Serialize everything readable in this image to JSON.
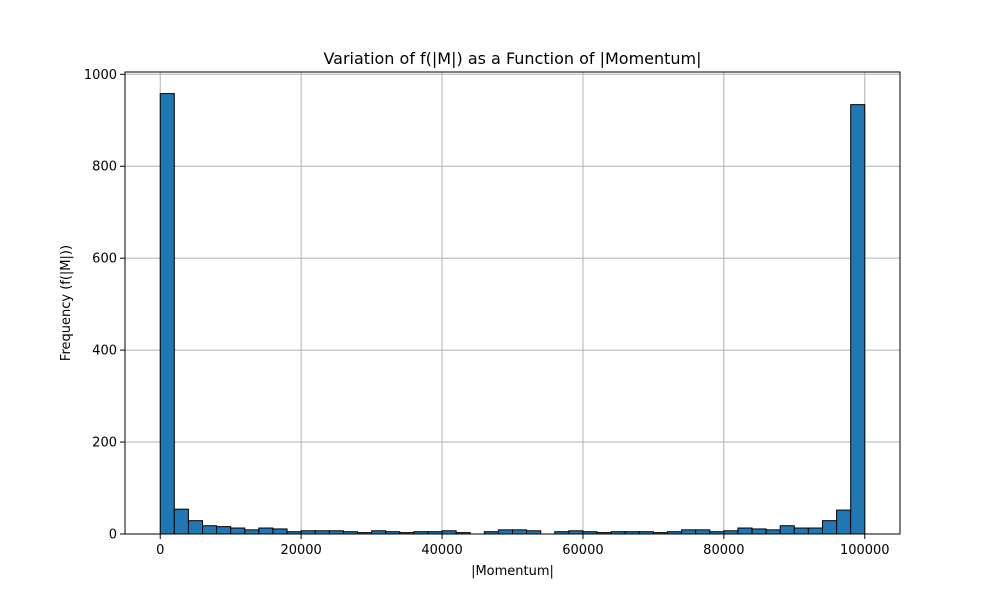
{
  "chart_data": {
    "type": "bar",
    "title": "Variation of f(|M|) as a Function of |Momentum|",
    "xlabel": "|Momentum|",
    "ylabel": "Frequency (f(|M|))",
    "xlim": [
      -5000,
      105000
    ],
    "ylim": [
      0,
      1005
    ],
    "xticks": [
      0,
      20000,
      40000,
      60000,
      80000,
      100000
    ],
    "xtick_labels": [
      "0",
      "20000",
      "40000",
      "60000",
      "80000",
      "100000"
    ],
    "yticks": [
      0,
      200,
      400,
      600,
      800,
      1000
    ],
    "ytick_labels": [
      "0",
      "200",
      "400",
      "600",
      "800",
      "1000"
    ],
    "grid": true,
    "bar_color": "#1f77b4",
    "bar_edge_color": "#000000",
    "bins": {
      "start": 0,
      "width": 2000,
      "count": 50
    },
    "values": [
      958,
      54,
      29,
      18,
      16,
      13,
      9,
      13,
      11,
      5,
      7,
      7,
      7,
      5,
      3,
      7,
      5,
      3,
      5,
      5,
      7,
      3,
      0,
      5,
      9,
      9,
      7,
      0,
      5,
      7,
      5,
      3,
      5,
      5,
      5,
      3,
      5,
      9,
      9,
      5,
      7,
      13,
      11,
      9,
      18,
      13,
      13,
      29,
      52,
      934
    ]
  }
}
